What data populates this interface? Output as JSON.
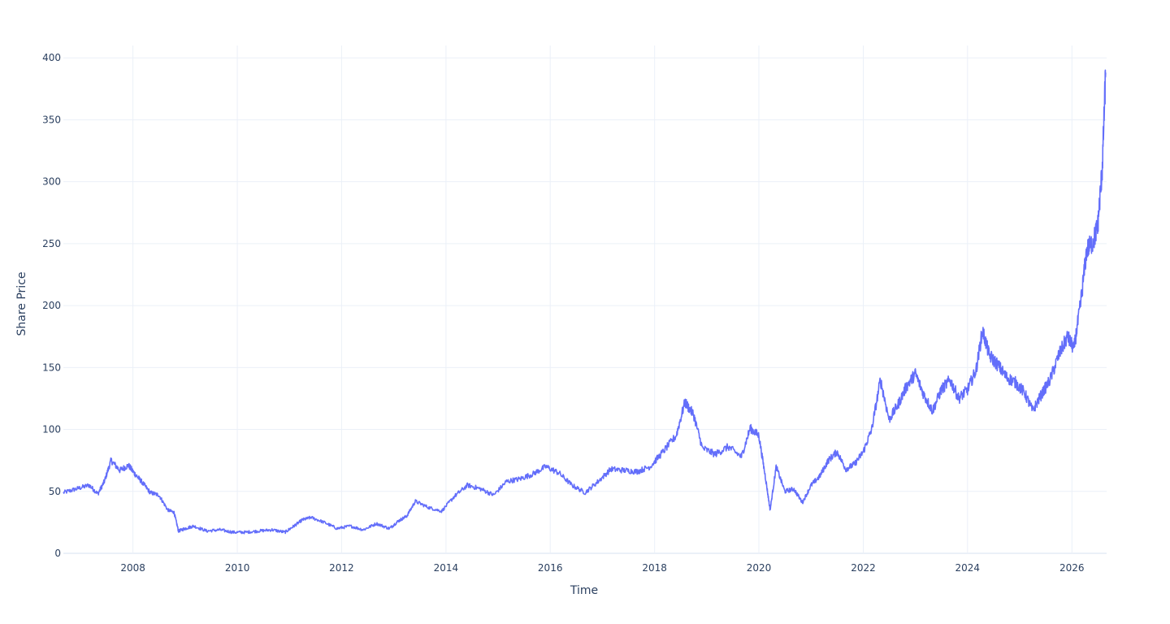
{
  "chart_data": {
    "type": "line",
    "title": "",
    "xlabel": "Time",
    "ylabel": "Share Price",
    "xlim": [
      "2006-09-01",
      "2026-09-01"
    ],
    "ylim": [
      0,
      410
    ],
    "x_ticks": [
      "2008",
      "2010",
      "2012",
      "2014",
      "2016",
      "2018",
      "2020",
      "2022",
      "2024",
      "2026"
    ],
    "y_ticks": [
      "0",
      "50",
      "100",
      "150",
      "200",
      "250",
      "300",
      "350",
      "400"
    ],
    "grid": true,
    "legend": "none",
    "series": [
      {
        "color": "#636efa",
        "x": [
          "2006-09-01",
          "2006-12-01",
          "2007-03-01",
          "2007-05-01",
          "2007-06-15",
          "2007-08-01",
          "2007-10-01",
          "2007-12-01",
          "2008-01-15",
          "2008-03-01",
          "2008-05-01",
          "2008-07-01",
          "2008-09-01",
          "2008-10-15",
          "2008-11-15",
          "2009-01-01",
          "2009-03-01",
          "2009-06-01",
          "2009-09-01",
          "2009-12-01",
          "2010-03-01",
          "2010-06-01",
          "2010-09-01",
          "2010-12-01",
          "2011-02-01",
          "2011-04-01",
          "2011-06-01",
          "2011-09-01",
          "2011-12-01",
          "2012-03-01",
          "2012-06-01",
          "2012-09-01",
          "2012-12-01",
          "2013-02-01",
          "2013-04-01",
          "2013-06-01",
          "2013-09-01",
          "2013-12-01",
          "2014-03-01",
          "2014-06-01",
          "2014-09-01",
          "2014-12-01",
          "2015-03-01",
          "2015-06-01",
          "2015-09-01",
          "2015-12-01",
          "2016-03-01",
          "2016-06-01",
          "2016-09-01",
          "2016-12-01",
          "2017-03-01",
          "2017-06-01",
          "2017-09-01",
          "2017-12-01",
          "2018-03-01",
          "2018-06-01",
          "2018-08-01",
          "2018-10-01",
          "2018-12-01",
          "2019-03-01",
          "2019-06-01",
          "2019-09-01",
          "2019-11-01",
          "2020-01-01",
          "2020-02-15",
          "2020-03-20",
          "2020-05-01",
          "2020-07-01",
          "2020-09-01",
          "2020-11-01",
          "2021-01-01",
          "2021-03-01",
          "2021-05-01",
          "2021-07-01",
          "2021-09-01",
          "2021-11-01",
          "2022-01-01",
          "2022-03-01",
          "2022-05-01",
          "2022-07-01",
          "2022-09-01",
          "2022-11-01",
          "2023-01-01",
          "2023-03-01",
          "2023-05-01",
          "2023-07-01",
          "2023-09-01",
          "2023-11-01",
          "2024-01-01",
          "2024-03-01",
          "2024-04-15",
          "2024-06-01",
          "2024-08-01",
          "2024-10-01",
          "2024-12-01",
          "2025-02-01",
          "2025-04-01",
          "2025-06-01",
          "2025-08-01",
          "2025-10-01",
          "2025-12-01",
          "2026-01-15",
          "2026-03-01",
          "2026-04-15",
          "2026-06-01",
          "2026-07-01",
          "2026-08-01",
          "2026-08-25"
        ],
        "y": [
          49,
          52,
          55,
          48,
          58,
          75,
          67,
          71,
          64,
          58,
          49,
          47,
          35,
          33,
          18,
          20,
          22,
          18,
          19,
          17,
          17,
          18,
          19,
          17,
          22,
          27,
          29,
          25,
          20,
          22,
          19,
          24,
          20,
          26,
          30,
          42,
          37,
          34,
          46,
          55,
          52,
          47,
          58,
          60,
          64,
          70,
          65,
          55,
          49,
          58,
          68,
          67,
          66,
          70,
          82,
          95,
          122,
          112,
          85,
          80,
          86,
          78,
          101,
          95,
          62,
          35,
          70,
          50,
          52,
          41,
          55,
          62,
          75,
          82,
          68,
          72,
          82,
          100,
          140,
          108,
          120,
          135,
          145,
          128,
          115,
          132,
          140,
          125,
          132,
          148,
          180,
          160,
          152,
          142,
          138,
          130,
          115,
          128,
          140,
          160,
          175,
          165,
          200,
          245,
          252,
          265,
          310,
          388
        ]
      }
    ]
  }
}
